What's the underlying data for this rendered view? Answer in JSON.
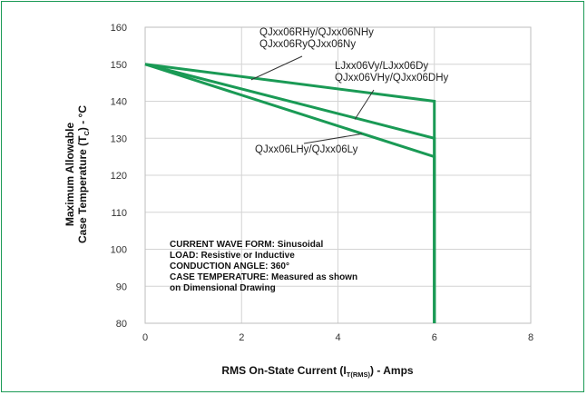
{
  "chart_data": {
    "type": "line",
    "title": "",
    "xlabel": {
      "main": "RMS On-State Current (I",
      "sub": "T(RMS)",
      "tail": ") - Amps"
    },
    "ylabel": {
      "line1": "Maximum Allowable",
      "line2_main": "Case Temperature (T",
      "line2_sub": "C",
      "line2_tail": ") - °C"
    },
    "xlim": [
      0,
      8
    ],
    "ylim": [
      80,
      160
    ],
    "xticks": [
      0,
      2,
      4,
      6,
      8
    ],
    "yticks": [
      80,
      90,
      100,
      110,
      120,
      130,
      140,
      150,
      160
    ],
    "grid": true,
    "series": [
      {
        "name": "QJxx06RHy/QJxx06NHy QJxx06RyQJxx06Ny",
        "x": [
          0,
          6,
          6
        ],
        "y": [
          150,
          140,
          80
        ]
      },
      {
        "name": "LJxx06Vy/LJxx06Dy QJxx06VHy/QJxx06DHy",
        "x": [
          0,
          6,
          6
        ],
        "y": [
          150,
          130,
          80
        ]
      },
      {
        "name": "QJxx06LHy/QJxx06Ly",
        "x": [
          0,
          6,
          6
        ],
        "y": [
          150,
          125,
          80
        ]
      }
    ],
    "annotations": [
      {
        "lines": [
          "QJxx06RHy/QJxx06NHy",
          "QJxx06RyQJxx06Ny"
        ],
        "series": 0,
        "pointer": {
          "x": 2.2,
          "y": 145.8
        }
      },
      {
        "lines": [
          "LJxx06Vy/LJxx06Dy",
          "QJxx06VHy/QJxx06DHy"
        ],
        "series": 1,
        "pointer": {
          "x": 4.35,
          "y": 135.1
        }
      },
      {
        "lines": [
          "QJxx06LHy/QJxx06Ly"
        ],
        "series": 2,
        "pointer": {
          "x": 4.5,
          "y": 131.2
        }
      }
    ],
    "notes": [
      "CURRENT WAVE FORM: Sinusoidal",
      "LOAD: Resistive or Inductive",
      "CONDUCTION ANGLE: 360°",
      "CASE TEMPERATURE: Measured as shown",
      "on Dimensional Drawing"
    ],
    "colors": {
      "series": "#1a9a55",
      "grid": "#d4d4d4",
      "frame": "#1a9a55"
    }
  }
}
